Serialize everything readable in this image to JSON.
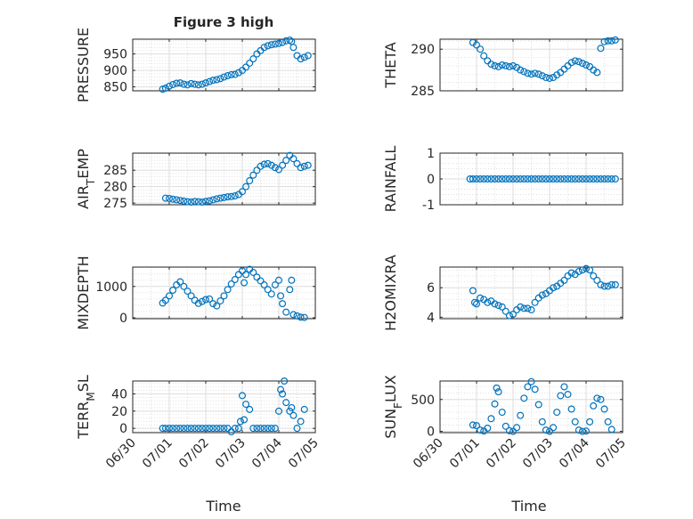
{
  "figure": {
    "title": "Figure 3 high",
    "series_color": "#0072BD",
    "x_axis_label": "Time"
  },
  "chart_data": [
    {
      "type": "scatter",
      "ylabel": "PRESSURE",
      "xlim": [
        0,
        5
      ],
      "ylim": [
        838,
        995
      ],
      "yticks": [
        850,
        900,
        950
      ],
      "xticks": [
        "06/30",
        "07/01",
        "07/02",
        "07/03",
        "07/04",
        "07/05"
      ],
      "grid": true,
      "x": [
        0.82,
        0.9,
        1.0,
        1.1,
        1.2,
        1.3,
        1.4,
        1.5,
        1.6,
        1.7,
        1.8,
        1.9,
        2.0,
        2.1,
        2.2,
        2.3,
        2.4,
        2.5,
        2.6,
        2.7,
        2.8,
        2.9,
        3.0,
        3.1,
        3.2,
        3.3,
        3.4,
        3.5,
        3.6,
        3.7,
        3.8,
        3.9,
        4.0,
        4.1,
        4.2,
        4.3,
        4.35,
        4.4,
        4.5,
        4.6,
        4.7,
        4.8
      ],
      "y": [
        843,
        846,
        852,
        857,
        861,
        862,
        858,
        856,
        860,
        858,
        856,
        858,
        862,
        866,
        870,
        872,
        875,
        880,
        884,
        887,
        888,
        893,
        900,
        910,
        922,
        935,
        950,
        960,
        970,
        975,
        978,
        980,
        982,
        985,
        990,
        992,
        988,
        970,
        945,
        935,
        940,
        945
      ]
    },
    {
      "type": "scatter",
      "ylabel": "THETA",
      "xlim": [
        0,
        5
      ],
      "ylim": [
        285,
        291.2
      ],
      "yticks": [
        285,
        290
      ],
      "xticks": [
        "06/30",
        "07/01",
        "07/02",
        "07/03",
        "07/04",
        "07/05"
      ],
      "grid": true,
      "x": [
        0.9,
        1.0,
        1.1,
        1.2,
        1.3,
        1.4,
        1.5,
        1.6,
        1.7,
        1.8,
        1.9,
        2.0,
        2.1,
        2.2,
        2.3,
        2.4,
        2.5,
        2.6,
        2.7,
        2.8,
        2.9,
        3.0,
        3.1,
        3.2,
        3.3,
        3.4,
        3.5,
        3.6,
        3.7,
        3.8,
        3.9,
        4.0,
        4.1,
        4.2,
        4.3,
        4.4,
        4.5,
        4.6,
        4.7,
        4.8
      ],
      "y": [
        290.8,
        290.5,
        290.0,
        289.2,
        288.6,
        288.2,
        288.0,
        287.9,
        288.1,
        288.0,
        287.9,
        288.0,
        287.8,
        287.5,
        287.3,
        287.1,
        287.0,
        287.1,
        287.0,
        286.8,
        286.6,
        286.5,
        286.6,
        286.9,
        287.2,
        287.6,
        288.0,
        288.4,
        288.6,
        288.5,
        288.3,
        288.1,
        287.9,
        287.5,
        287.2,
        290.1,
        290.9,
        291.0,
        291.0,
        291.1
      ]
    },
    {
      "type": "scatter",
      "ylabel": "AIR_TEMP",
      "xlim": [
        0,
        5
      ],
      "ylim": [
        274.5,
        290.2
      ],
      "yticks": [
        275,
        280,
        285
      ],
      "xticks": [
        "06/30",
        "07/01",
        "07/02",
        "07/03",
        "07/04",
        "07/05"
      ],
      "grid": true,
      "x": [
        0.9,
        1.0,
        1.1,
        1.2,
        1.3,
        1.4,
        1.5,
        1.6,
        1.7,
        1.8,
        1.9,
        2.0,
        2.1,
        2.2,
        2.3,
        2.4,
        2.5,
        2.6,
        2.7,
        2.8,
        2.9,
        3.0,
        3.1,
        3.2,
        3.3,
        3.4,
        3.5,
        3.6,
        3.7,
        3.8,
        3.9,
        4.0,
        4.1,
        4.2,
        4.3,
        4.4,
        4.5,
        4.6,
        4.7,
        4.8
      ],
      "y": [
        276.5,
        276.4,
        276.2,
        276.0,
        275.8,
        275.6,
        275.4,
        275.3,
        275.5,
        275.4,
        275.3,
        275.5,
        275.7,
        276.0,
        276.3,
        276.5,
        276.7,
        276.9,
        277.0,
        277.2,
        277.6,
        278.5,
        280.0,
        281.8,
        283.5,
        285.0,
        286.2,
        286.8,
        287.0,
        286.5,
        285.8,
        285.2,
        286.5,
        288.0,
        289.5,
        288.5,
        287.0,
        285.8,
        286.2,
        286.5
      ]
    },
    {
      "type": "scatter",
      "ylabel": "RAINFALL",
      "xlim": [
        0,
        5
      ],
      "ylim": [
        -1,
        1
      ],
      "yticks": [
        -1,
        0,
        1
      ],
      "xticks": [
        "06/30",
        "07/01",
        "07/02",
        "07/03",
        "07/04",
        "07/05"
      ],
      "grid": true,
      "x": [
        0.82,
        0.9,
        1.0,
        1.1,
        1.2,
        1.3,
        1.4,
        1.5,
        1.6,
        1.7,
        1.8,
        1.9,
        2.0,
        2.1,
        2.2,
        2.3,
        2.4,
        2.5,
        2.6,
        2.7,
        2.8,
        2.9,
        3.0,
        3.1,
        3.2,
        3.3,
        3.4,
        3.5,
        3.6,
        3.7,
        3.8,
        3.9,
        4.0,
        4.1,
        4.2,
        4.3,
        4.4,
        4.5,
        4.6,
        4.7,
        4.8
      ],
      "y": [
        0,
        0,
        0,
        0,
        0,
        0,
        0,
        0,
        0,
        0,
        0,
        0,
        0,
        0,
        0,
        0,
        0,
        0,
        0,
        0,
        0,
        0,
        0,
        0,
        0,
        0,
        0,
        0,
        0,
        0,
        0,
        0,
        0,
        0,
        0,
        0,
        0,
        0,
        0,
        0,
        0
      ]
    },
    {
      "type": "scatter",
      "ylabel": "MIXDEPTH",
      "xlim": [
        0,
        5
      ],
      "ylim": [
        -30,
        1620
      ],
      "yticks": [
        0,
        1000
      ],
      "xticks": [
        "06/30",
        "07/01",
        "07/02",
        "07/03",
        "07/04",
        "07/05"
      ],
      "grid": true,
      "x": [
        0.82,
        0.9,
        1.0,
        1.1,
        1.2,
        1.3,
        1.4,
        1.5,
        1.6,
        1.7,
        1.8,
        1.9,
        2.0,
        2.1,
        2.2,
        2.3,
        2.4,
        2.5,
        2.6,
        2.7,
        2.8,
        2.9,
        3.0,
        3.05,
        3.1,
        3.2,
        3.3,
        3.4,
        3.5,
        3.6,
        3.7,
        3.8,
        3.9,
        4.0,
        4.05,
        4.1,
        4.2,
        4.3,
        4.35,
        4.4,
        4.5,
        4.6,
        4.7
      ],
      "y": [
        470,
        560,
        700,
        880,
        1050,
        1150,
        1000,
        850,
        700,
        560,
        460,
        520,
        580,
        600,
        450,
        380,
        540,
        700,
        900,
        1080,
        1220,
        1380,
        1500,
        1120,
        1380,
        1550,
        1450,
        1300,
        1180,
        1050,
        900,
        760,
        1050,
        1200,
        700,
        450,
        180,
        900,
        1200,
        100,
        60,
        20,
        10
      ]
    },
    {
      "type": "scatter",
      "ylabel": "H2OMIXRA",
      "xlim": [
        0,
        5
      ],
      "ylim": [
        3.9,
        7.4
      ],
      "yticks": [
        4,
        6
      ],
      "xticks": [
        "06/30",
        "07/01",
        "07/02",
        "07/03",
        "07/04",
        "07/05"
      ],
      "grid": true,
      "x": [
        0.9,
        0.95,
        1.0,
        1.1,
        1.2,
        1.3,
        1.4,
        1.5,
        1.6,
        1.7,
        1.8,
        1.9,
        2.0,
        2.1,
        2.2,
        2.3,
        2.4,
        2.5,
        2.6,
        2.7,
        2.8,
        2.9,
        3.0,
        3.1,
        3.2,
        3.3,
        3.4,
        3.5,
        3.6,
        3.7,
        3.8,
        3.9,
        4.0,
        4.1,
        4.2,
        4.3,
        4.4,
        4.5,
        4.6,
        4.7,
        4.8
      ],
      "y": [
        5.8,
        5.0,
        4.9,
        5.3,
        5.2,
        5.0,
        5.1,
        4.9,
        4.8,
        4.7,
        4.4,
        4.1,
        4.2,
        4.5,
        4.7,
        4.6,
        4.6,
        4.5,
        5.0,
        5.3,
        5.5,
        5.6,
        5.8,
        6.0,
        6.1,
        6.3,
        6.5,
        6.8,
        7.0,
        6.9,
        7.1,
        7.2,
        7.3,
        7.2,
        6.8,
        6.5,
        6.2,
        6.1,
        6.1,
        6.2,
        6.2
      ]
    },
    {
      "type": "scatter",
      "ylabel": "TERR_MSL",
      "xlim": [
        0,
        5
      ],
      "ylim": [
        -5,
        55
      ],
      "yticks": [
        0,
        20,
        40
      ],
      "xticks": [
        "06/30",
        "07/01",
        "07/02",
        "07/03",
        "07/04",
        "07/05"
      ],
      "grid": true,
      "x": [
        0.82,
        0.9,
        1.0,
        1.1,
        1.2,
        1.3,
        1.4,
        1.5,
        1.6,
        1.7,
        1.8,
        1.9,
        2.0,
        2.1,
        2.2,
        2.3,
        2.4,
        2.5,
        2.6,
        2.7,
        2.8,
        2.9,
        2.95,
        3.0,
        3.05,
        3.1,
        3.2,
        3.3,
        3.4,
        3.5,
        3.6,
        3.7,
        3.8,
        3.9,
        4.0,
        4.05,
        4.1,
        4.15,
        4.2,
        4.3,
        4.35,
        4.4,
        4.5,
        4.6,
        4.7
      ],
      "y": [
        0,
        0,
        0,
        0,
        0,
        0,
        0,
        0,
        0,
        0,
        0,
        0,
        0,
        0,
        0,
        0,
        0,
        0,
        0,
        -4,
        0,
        0,
        8,
        38,
        10,
        28,
        22,
        0,
        0,
        0,
        0,
        0,
        0,
        0,
        20,
        45,
        40,
        55,
        30,
        20,
        24,
        15,
        0,
        8,
        22
      ]
    },
    {
      "type": "scatter",
      "ylabel": "SUN_FLUX",
      "xlim": [
        0,
        5
      ],
      "ylim": [
        -20,
        790
      ],
      "yticks": [
        0,
        500
      ],
      "xticks": [
        "06/30",
        "07/01",
        "07/02",
        "07/03",
        "07/04",
        "07/05"
      ],
      "grid": true,
      "x": [
        0.9,
        1.0,
        1.1,
        1.2,
        1.3,
        1.4,
        1.5,
        1.55,
        1.6,
        1.7,
        1.8,
        1.9,
        2.0,
        2.1,
        2.2,
        2.3,
        2.4,
        2.5,
        2.6,
        2.7,
        2.8,
        2.9,
        3.0,
        3.1,
        3.2,
        3.3,
        3.4,
        3.5,
        3.6,
        3.7,
        3.8,
        3.9,
        4.0,
        4.1,
        4.2,
        4.3,
        4.4,
        4.5,
        4.6,
        4.7
      ],
      "y": [
        100,
        90,
        20,
        5,
        50,
        200,
        430,
        680,
        620,
        300,
        80,
        10,
        0,
        60,
        250,
        520,
        700,
        780,
        660,
        420,
        150,
        20,
        0,
        60,
        300,
        560,
        700,
        580,
        350,
        150,
        20,
        0,
        5,
        150,
        400,
        520,
        500,
        350,
        150,
        30
      ]
    }
  ]
}
